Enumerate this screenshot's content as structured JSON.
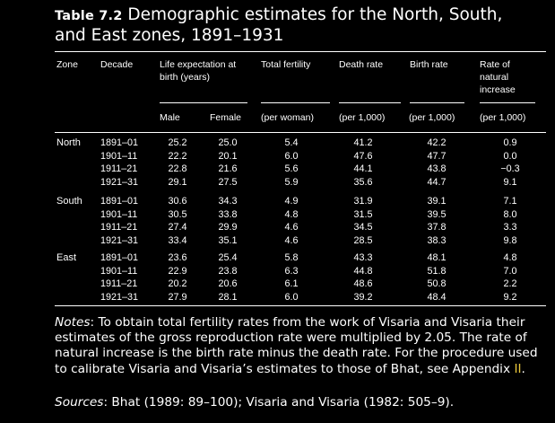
{
  "caption": {
    "number": "Table 7.2",
    "title_line1": "Demographic estimates for the North, South,",
    "title_line2": "and East zones, 1891–1931"
  },
  "headers": {
    "zone": "Zone",
    "decade": "Decade",
    "life_expectancy_line1": "Life expectation at",
    "life_expectancy_line2": "birth (years)",
    "total_fertility": "Total fertility",
    "death_rate": "Death rate",
    "birth_rate": "Birth rate",
    "natural_increase_line1": "Rate of",
    "natural_increase_line2": "natural",
    "natural_increase_line3": "increase",
    "male": "Male",
    "female": "Female",
    "unit_fertility": "(per woman)",
    "unit_death": "(per 1,000)",
    "unit_birth": "(per 1,000)",
    "unit_increase": "(per 1,000)"
  },
  "zones": [
    {
      "name": "North",
      "rows": [
        {
          "decade": "1891–01",
          "male": "25.2",
          "female": "25.0",
          "tfr": "5.4",
          "death": "41.2",
          "birth": "42.2",
          "increase": "0.9"
        },
        {
          "decade": "1901–11",
          "male": "22.2",
          "female": "20.1",
          "tfr": "6.0",
          "death": "47.6",
          "birth": "47.7",
          "increase": "0.0"
        },
        {
          "decade": "1911–21",
          "male": "22.8",
          "female": "21.6",
          "tfr": "5.6",
          "death": "44.1",
          "birth": "43.8",
          "increase": "−0.3"
        },
        {
          "decade": "1921–31",
          "male": "29.1",
          "female": "27.5",
          "tfr": "5.9",
          "death": "35.6",
          "birth": "44.7",
          "increase": "9.1"
        }
      ]
    },
    {
      "name": "South",
      "rows": [
        {
          "decade": "1891–01",
          "male": "30.6",
          "female": "34.3",
          "tfr": "4.9",
          "death": "31.9",
          "birth": "39.1",
          "increase": "7.1"
        },
        {
          "decade": "1901–11",
          "male": "30.5",
          "female": "33.8",
          "tfr": "4.8",
          "death": "31.5",
          "birth": "39.5",
          "increase": "8.0"
        },
        {
          "decade": "1911–21",
          "male": "27.4",
          "female": "29.9",
          "tfr": "4.6",
          "death": "34.5",
          "birth": "37.8",
          "increase": "3.3"
        },
        {
          "decade": "1921–31",
          "male": "33.4",
          "female": "35.1",
          "tfr": "4.6",
          "death": "28.5",
          "birth": "38.3",
          "increase": "9.8"
        }
      ]
    },
    {
      "name": "East",
      "rows": [
        {
          "decade": "1891–01",
          "male": "23.6",
          "female": "25.4",
          "tfr": "5.8",
          "death": "43.3",
          "birth": "48.1",
          "increase": "4.8"
        },
        {
          "decade": "1901–11",
          "male": "22.9",
          "female": "23.8",
          "tfr": "6.3",
          "death": "44.8",
          "birth": "51.8",
          "increase": "7.0"
        },
        {
          "decade": "1911–21",
          "male": "20.2",
          "female": "20.6",
          "tfr": "6.1",
          "death": "48.6",
          "birth": "50.8",
          "increase": "2.2"
        },
        {
          "decade": "1921–31",
          "male": "27.9",
          "female": "28.1",
          "tfr": "6.0",
          "death": "39.2",
          "birth": "48.4",
          "increase": "9.2"
        }
      ]
    }
  ],
  "notes": {
    "label": "Notes",
    "text": ": To obtain total fertility rates from the work of Visaria and Visaria their estimates of the gross reproduction rate were multiplied by 2.05. The rate of natural increase is the birth rate minus the death rate. For the procedure used to calibrate Visaria and Visaria’s estimates to those of Bhat, see Appendix ",
    "appendix_link": "II",
    "end": "."
  },
  "sources": {
    "label": "Sources",
    "text": ": Bhat (1989: 89–100); Visaria and Visaria (1982: 505–9)."
  },
  "colors": {
    "background": "#000000",
    "text": "#ffffff",
    "link": "#e8c63a"
  }
}
